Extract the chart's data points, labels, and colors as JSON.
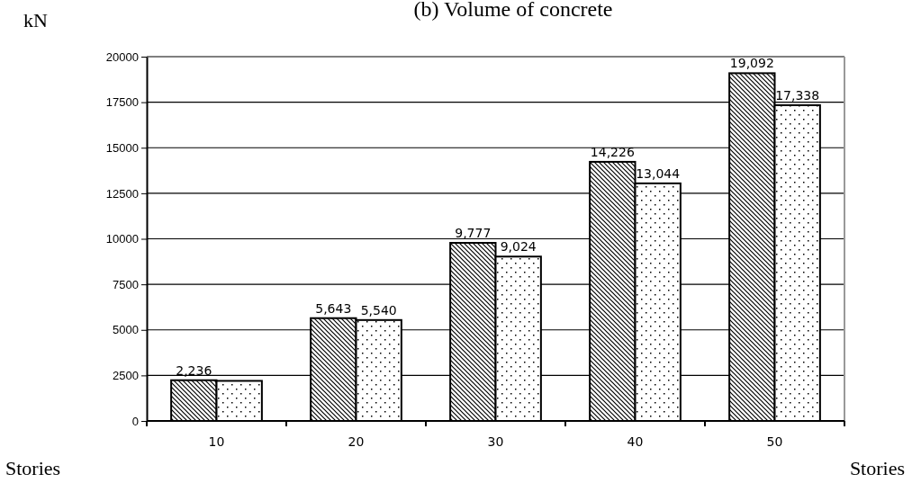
{
  "chart_data": {
    "type": "bar",
    "title": "(b) Volume of concrete",
    "xlabel": "Stories",
    "categories": [
      "10",
      "20",
      "30",
      "40",
      "50"
    ],
    "series": [
      {
        "color": "#000000",
        "values": [
          2236,
          5643,
          9777,
          14226,
          19092
        ],
        "value_labels": [
          "2,236",
          "5,643",
          "9,777",
          "14,226",
          "19,092"
        ]
      },
      {
        "color": "#000000",
        "values": [
          2200,
          5540,
          9024,
          13044,
          17338
        ],
        "value_labels": [
          null,
          "5,540",
          "9,024",
          "13,044",
          "17,338"
        ]
      }
    ],
    "ylim": [
      0,
      20000
    ],
    "yticks": [
      0,
      2500,
      5000,
      7500,
      10000,
      12500,
      15000,
      17500,
      20000
    ],
    "grid": "y",
    "annotations": [
      "kN",
      "Stories"
    ]
  }
}
